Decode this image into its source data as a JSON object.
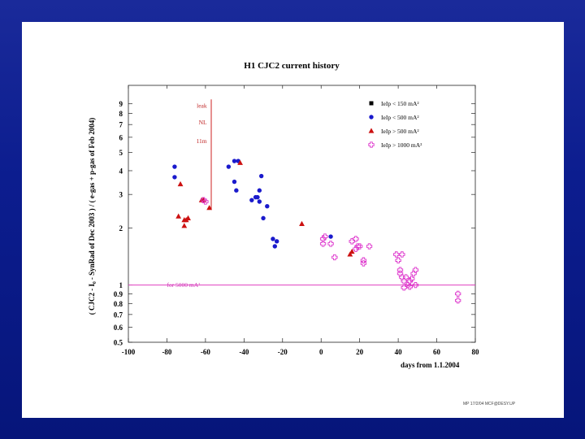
{
  "chart_data": {
    "type": "scatter",
    "title": "H1 CJC2 current history",
    "xlabel": "days from 1.1.2004",
    "ylabel": "( CJC2 - I₀ - SynRad of Dec 2003 ) / ( e-gas + p-gas of Feb 2004)",
    "xlim": [
      -100,
      80
    ],
    "ylim": [
      0.5,
      10
    ],
    "yscale": "log",
    "x_ticks": [
      -100,
      -80,
      -60,
      -40,
      -20,
      0,
      20,
      40,
      60,
      80
    ],
    "y_ticks": [
      0.5,
      0.6,
      0.7,
      0.8,
      0.9,
      1,
      2,
      3,
      4,
      5,
      6,
      7,
      8,
      9
    ],
    "legend_position": "top-right",
    "series": [
      {
        "name": "IeIp < 150 mA²",
        "marker": "square",
        "color": "#000000",
        "points": []
      },
      {
        "name": "IeIp < 500 mA²",
        "marker": "circle",
        "color": "#1a1acc",
        "points": [
          [
            -76,
            4.2
          ],
          [
            -76,
            3.7
          ],
          [
            -48,
            4.2
          ],
          [
            -45,
            4.5
          ],
          [
            -43,
            4.5
          ],
          [
            -45,
            3.5
          ],
          [
            -44,
            3.15
          ],
          [
            -36,
            2.8
          ],
          [
            -34,
            2.9
          ],
          [
            -33,
            2.9
          ],
          [
            -32,
            3.15
          ],
          [
            -32,
            2.75
          ],
          [
            -31,
            3.75
          ],
          [
            -30,
            2.25
          ],
          [
            -28,
            2.6
          ],
          [
            -25,
            1.75
          ],
          [
            -24,
            1.6
          ],
          [
            -23,
            1.7
          ],
          [
            5,
            1.8
          ]
        ]
      },
      {
        "name": "IeIp > 500 mA²",
        "marker": "triangle",
        "color": "#cc1111",
        "points": [
          [
            -74,
            2.3
          ],
          [
            -73,
            3.4
          ],
          [
            -71,
            2.05
          ],
          [
            -71,
            2.2
          ],
          [
            -70,
            2.2
          ],
          [
            -69,
            2.25
          ],
          [
            -62,
            2.8
          ],
          [
            -61,
            2.8
          ],
          [
            -58,
            2.55
          ],
          [
            -42,
            4.4
          ],
          [
            -10,
            2.1
          ],
          [
            15,
            1.45
          ],
          [
            16,
            1.5
          ]
        ]
      },
      {
        "name": "IeIp > 1000 mA²",
        "marker": "cross-circle",
        "color": "#dd33cc",
        "points": [
          [
            -61,
            2.8
          ],
          [
            -60,
            2.75
          ],
          [
            1,
            1.75
          ],
          [
            1,
            1.65
          ],
          [
            2,
            1.8
          ],
          [
            5,
            1.65
          ],
          [
            7,
            1.4
          ],
          [
            16,
            1.7
          ],
          [
            18,
            1.75
          ],
          [
            18,
            1.55
          ],
          [
            19,
            1.6
          ],
          [
            20,
            1.6
          ],
          [
            22,
            1.35
          ],
          [
            22,
            1.3
          ],
          [
            25,
            1.6
          ],
          [
            39,
            1.45
          ],
          [
            40,
            1.35
          ],
          [
            41,
            1.2
          ],
          [
            41,
            1.15
          ],
          [
            42,
            1.1
          ],
          [
            42,
            1.45
          ],
          [
            43,
            1.05
          ],
          [
            43,
            0.97
          ],
          [
            44,
            1.1
          ],
          [
            45,
            1.0
          ],
          [
            46,
            0.98
          ],
          [
            46,
            1.05
          ],
          [
            47,
            1.08
          ],
          [
            48,
            1.15
          ],
          [
            49,
            1.0
          ],
          [
            49,
            1.2
          ],
          [
            71,
            0.9
          ],
          [
            71,
            0.83
          ]
        ]
      }
    ],
    "annotations": [
      {
        "text": "leak",
        "x": -58,
        "y": 8.6
      },
      {
        "text": "NL",
        "x": -58,
        "y": 7.0
      },
      {
        "text": "11m",
        "x": -58,
        "y": 5.6
      },
      {
        "text": "for 5000 mA²",
        "x": -80,
        "y": 0.95
      }
    ],
    "reference_lines": [
      {
        "orientation": "horizontal",
        "y": 1.0,
        "color": "#e040c0"
      },
      {
        "orientation": "vertical",
        "x": -57,
        "y_from": 2.5,
        "y_to": 9.5,
        "color": "#cc2222"
      }
    ]
  },
  "footer": "MP 17/2/04 MCF@DESY.UP"
}
